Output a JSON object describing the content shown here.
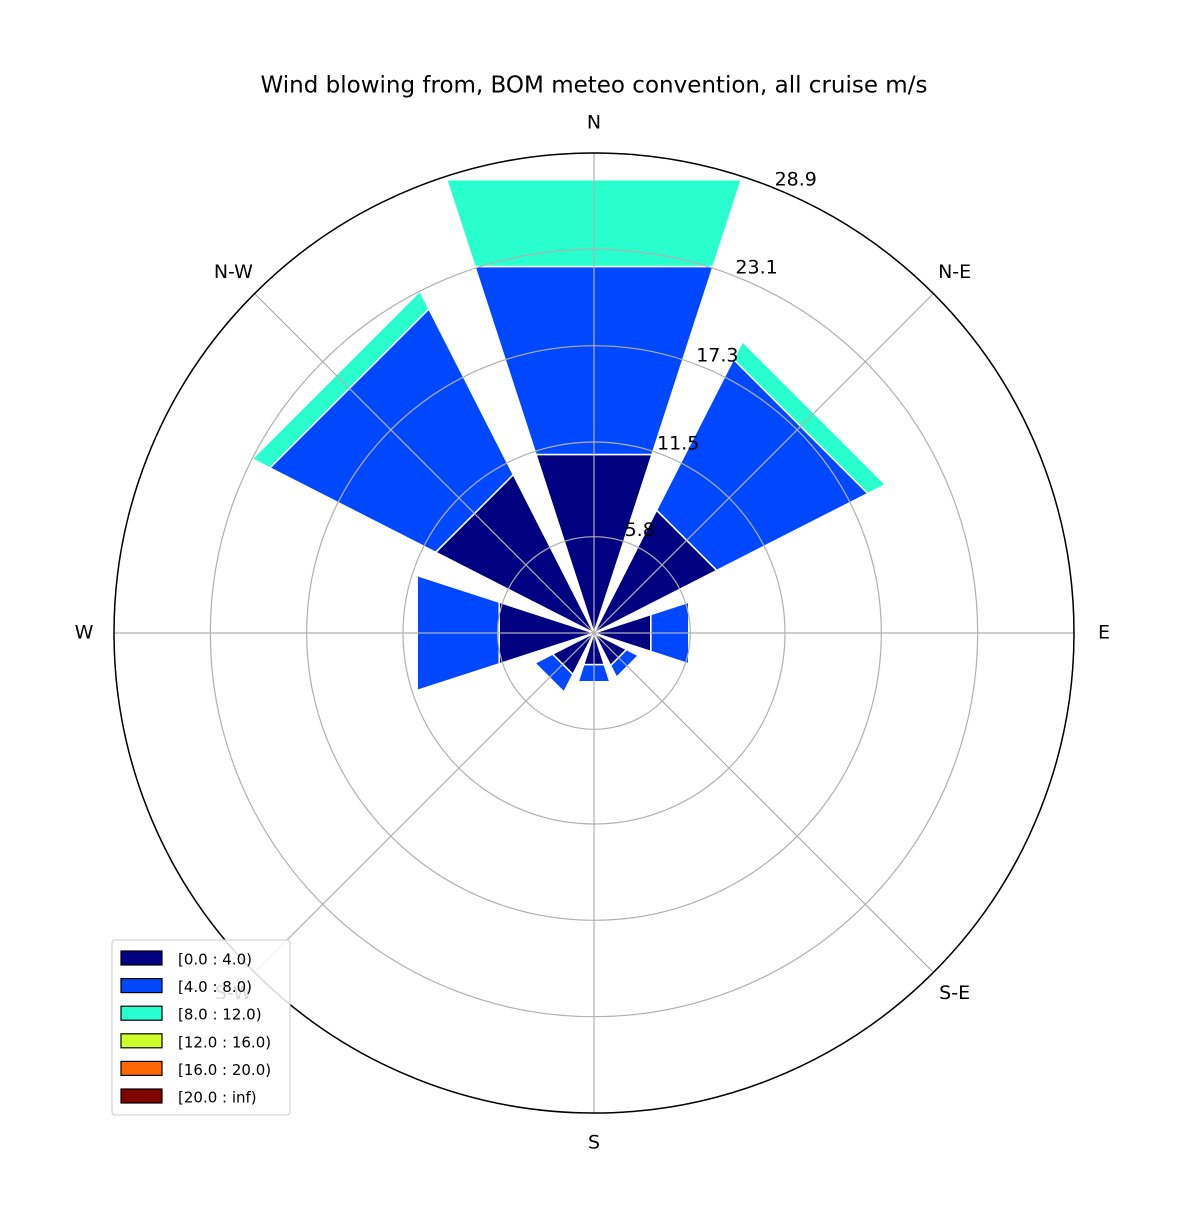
{
  "chart_data": {
    "type": "windrose",
    "title": "Wind blowing from, BOM meteo convention, all cruise m/s",
    "categories": [
      "N",
      "N-E",
      "E",
      "S-E",
      "S",
      "S-W",
      "W",
      "N-W"
    ],
    "series": [
      {
        "name": "[0.0 : 4.0)",
        "color": "#000080",
        "values": [
          11.3,
          8.3,
          3.6,
          2.2,
          2.0,
          2.8,
          6.0,
          10.7
        ]
      },
      {
        "name": "[4.0 : 8.0)",
        "color": "#0048ff",
        "values": [
          11.9,
          10.2,
          2.4,
          0.8,
          1.1,
          1.2,
          5.2,
          11.2
        ]
      },
      {
        "name": "[8.0 : 12.0)",
        "color": "#29ffce",
        "values": [
          5.5,
          1.2,
          0,
          0,
          0,
          0,
          0,
          1.2
        ]
      },
      {
        "name": "[12.0 : 16.0)",
        "color": "#ceff29",
        "values": [
          0,
          0,
          0,
          0,
          0,
          0,
          0,
          0
        ]
      },
      {
        "name": "[16.0 : 20.0)",
        "color": "#ff6800",
        "values": [
          0,
          0,
          0,
          0,
          0,
          0,
          0,
          0
        ]
      },
      {
        "name": "[20.0 : inf)",
        "color": "#800000",
        "values": [
          0,
          0,
          0,
          0,
          0,
          0,
          0,
          0
        ]
      }
    ],
    "rlim": [
      0,
      28.9
    ],
    "rticks": [
      5.8,
      11.5,
      17.3,
      23.1,
      28.9
    ],
    "grid": true,
    "legend": "lower left"
  }
}
